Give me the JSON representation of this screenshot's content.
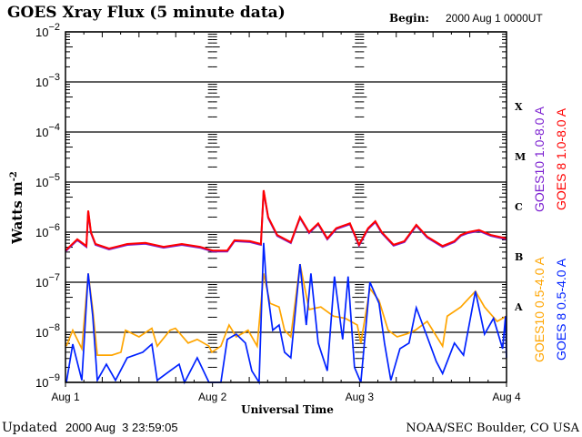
{
  "header": {
    "title": "GOES Xray Flux (5 minute data)",
    "begin_label": "Begin:",
    "begin_value": "2000 Aug 1 0000UT"
  },
  "footer": {
    "updated_label": "Updated",
    "updated_value": "2000 Aug  3 23:59:05",
    "credit": "NOAA/SEC Boulder, CO USA"
  },
  "chart_data": {
    "type": "line",
    "title": "GOES Xray Flux (5 minute data)",
    "xlabel": "Universal Time",
    "ylabel": "Watts m",
    "ylabel_exp": "-2",
    "yscale": "log",
    "ylim": [
      1e-09,
      0.01
    ],
    "xlim": [
      "2000-08-01T00:00",
      "2000-08-04T00:00"
    ],
    "x_ticks": [
      {
        "t": "2000-08-01T00:00",
        "label": "Aug 1"
      },
      {
        "t": "2000-08-02T00:00",
        "label": "Aug 2"
      },
      {
        "t": "2000-08-03T00:00",
        "label": "Aug 3"
      },
      {
        "t": "2000-08-04T00:00",
        "label": "Aug 4"
      }
    ],
    "y_ticks": [
      {
        "v": 0.01,
        "base": "10",
        "exp": "-2"
      },
      {
        "v": 0.001,
        "base": "10",
        "exp": "-3"
      },
      {
        "v": 0.0001,
        "base": "10",
        "exp": "-4"
      },
      {
        "v": 1e-05,
        "base": "10",
        "exp": "-5"
      },
      {
        "v": 1e-06,
        "base": "10",
        "exp": "-6"
      },
      {
        "v": 1e-07,
        "base": "10",
        "exp": "-7"
      },
      {
        "v": 1e-08,
        "base": "10",
        "exp": "-8"
      },
      {
        "v": 1e-09,
        "base": "10",
        "exp": "-9"
      }
    ],
    "flare_classes": [
      {
        "label": "X",
        "v": 0.00032
      },
      {
        "label": "M",
        "v": 3.2e-05
      },
      {
        "label": "C",
        "v": 3.2e-06
      },
      {
        "label": "B",
        "v": 3.2e-07
      },
      {
        "label": "A",
        "v": 3.2e-08
      }
    ],
    "grid": "horizontal lines at each decade",
    "legend_placement": "right, rotated",
    "series": [
      {
        "name": "GOES10 1.0-8.0 A",
        "color": "#7b1fd0",
        "points": [
          [
            "2000-08-01T00:00",
            4.3e-07
          ],
          [
            "2000-08-01T01:56",
            7.2e-07
          ],
          [
            "2000-08-01T03:25",
            5.3e-07
          ],
          [
            "2000-08-01T03:43",
            2.7e-06
          ],
          [
            "2000-08-01T04:09",
            1e-06
          ],
          [
            "2000-08-01T04:54",
            5.8e-07
          ],
          [
            "2000-08-01T07:07",
            4.7e-07
          ],
          [
            "2000-08-01T10:05",
            5.8e-07
          ],
          [
            "2000-08-01T13:03",
            6.1e-07
          ],
          [
            "2000-08-01T16:01",
            5.1e-07
          ],
          [
            "2000-08-01T18:59",
            5.8e-07
          ],
          [
            "2000-08-01T21:57",
            5.1e-07
          ],
          [
            "2000-08-02T00:02",
            4.3e-07
          ],
          [
            "2000-08-02T02:25",
            4.3e-07
          ],
          [
            "2000-08-02T03:36",
            6.9e-07
          ],
          [
            "2000-08-02T06:07",
            6.6e-07
          ],
          [
            "2000-08-02T07:54",
            5.8e-07
          ],
          [
            "2000-08-02T08:21",
            6.9e-06
          ],
          [
            "2000-08-02T09:05",
            2e-06
          ],
          [
            "2000-08-02T10:34",
            8.8e-07
          ],
          [
            "2000-08-02T12:47",
            6.3e-07
          ],
          [
            "2000-08-02T14:17",
            2e-06
          ],
          [
            "2000-08-02T15:46",
            1e-06
          ],
          [
            "2000-08-02T17:15",
            1.5e-06
          ],
          [
            "2000-08-02T18:44",
            7.5e-07
          ],
          [
            "2000-08-02T20:13",
            1.2e-06
          ],
          [
            "2000-08-02T22:26",
            1.5e-06
          ],
          [
            "2000-08-02T23:55",
            5.6e-07
          ],
          [
            "2000-08-03T01:24",
            1.2e-06
          ],
          [
            "2000-08-03T02:35",
            1.65e-06
          ],
          [
            "2000-08-03T03:38",
            1e-06
          ],
          [
            "2000-08-03T05:34",
            5.6e-07
          ],
          [
            "2000-08-03T07:20",
            6.6e-07
          ],
          [
            "2000-08-03T09:16",
            1.4e-06
          ],
          [
            "2000-08-03T11:03",
            8.1e-07
          ],
          [
            "2000-08-03T13:34",
            5.3e-07
          ],
          [
            "2000-08-03T15:30",
            6.6e-07
          ],
          [
            "2000-08-03T16:32",
            8.8e-07
          ],
          [
            "2000-08-03T17:44",
            1e-06
          ],
          [
            "2000-08-03T19:31",
            1.1e-06
          ],
          [
            "2000-08-03T21:26",
            8.8e-07
          ],
          [
            "2000-08-03T23:58",
            7.5e-07
          ]
        ]
      },
      {
        "name": "GOES 8 1.0-8.0 A",
        "color": "#ff0000",
        "points": [
          [
            "2000-08-01T00:00",
            4.3e-07
          ],
          [
            "2000-08-01T01:56",
            7.2e-07
          ],
          [
            "2000-08-01T03:25",
            5.3e-07
          ],
          [
            "2000-08-01T03:43",
            2.7e-06
          ],
          [
            "2000-08-01T04:09",
            1e-06
          ],
          [
            "2000-08-01T04:54",
            5.8e-07
          ],
          [
            "2000-08-01T07:07",
            4.7e-07
          ],
          [
            "2000-08-01T10:05",
            5.8e-07
          ],
          [
            "2000-08-01T13:03",
            6.1e-07
          ],
          [
            "2000-08-01T16:01",
            5.1e-07
          ],
          [
            "2000-08-01T18:59",
            5.8e-07
          ],
          [
            "2000-08-01T21:57",
            5.1e-07
          ],
          [
            "2000-08-02T00:02",
            4.3e-07
          ],
          [
            "2000-08-02T02:25",
            4.3e-07
          ],
          [
            "2000-08-02T03:36",
            6.9e-07
          ],
          [
            "2000-08-02T06:07",
            6.6e-07
          ],
          [
            "2000-08-02T07:54",
            5.8e-07
          ],
          [
            "2000-08-02T08:21",
            6.9e-06
          ],
          [
            "2000-08-02T09:05",
            2e-06
          ],
          [
            "2000-08-02T10:34",
            8.8e-07
          ],
          [
            "2000-08-02T12:47",
            6.3e-07
          ],
          [
            "2000-08-02T14:17",
            2e-06
          ],
          [
            "2000-08-02T15:46",
            1e-06
          ],
          [
            "2000-08-02T17:15",
            1.5e-06
          ],
          [
            "2000-08-02T18:44",
            7.5e-07
          ],
          [
            "2000-08-02T20:13",
            1.2e-06
          ],
          [
            "2000-08-02T22:26",
            1.5e-06
          ],
          [
            "2000-08-02T23:55",
            5.6e-07
          ],
          [
            "2000-08-03T01:24",
            1.2e-06
          ],
          [
            "2000-08-03T02:35",
            1.65e-06
          ],
          [
            "2000-08-03T03:38",
            1e-06
          ],
          [
            "2000-08-03T05:34",
            5.6e-07
          ],
          [
            "2000-08-03T07:20",
            6.6e-07
          ],
          [
            "2000-08-03T09:16",
            1.4e-06
          ],
          [
            "2000-08-03T11:03",
            8.1e-07
          ],
          [
            "2000-08-03T13:34",
            5.3e-07
          ],
          [
            "2000-08-03T15:30",
            6.6e-07
          ],
          [
            "2000-08-03T16:32",
            8.8e-07
          ],
          [
            "2000-08-03T17:44",
            1e-06
          ],
          [
            "2000-08-03T19:31",
            1.1e-06
          ],
          [
            "2000-08-03T21:26",
            8.8e-07
          ],
          [
            "2000-08-03T23:58",
            7.5e-07
          ]
        ]
      },
      {
        "name": "GOES10 0.5-4.0 A",
        "color": "#ffa500",
        "points": [
          [
            "2000-08-01T00:09",
            5.3e-09
          ],
          [
            "2000-08-01T01:11",
            1.1e-08
          ],
          [
            "2000-08-01T02:40",
            4.7e-09
          ],
          [
            "2000-08-01T03:43",
            1.5e-07
          ],
          [
            "2000-08-01T04:27",
            2.85e-08
          ],
          [
            "2000-08-01T05:12",
            3.5e-09
          ],
          [
            "2000-08-01T07:34",
            3.5e-09
          ],
          [
            "2000-08-01T09:03",
            4e-09
          ],
          [
            "2000-08-01T09:48",
            1.1e-08
          ],
          [
            "2000-08-01T12:01",
            8.1e-09
          ],
          [
            "2000-08-01T14:06",
            1.2e-08
          ],
          [
            "2000-08-01T14:59",
            5.3e-09
          ],
          [
            "2000-08-01T17:04",
            1.1e-08
          ],
          [
            "2000-08-01T17:57",
            1.2e-08
          ],
          [
            "2000-08-01T20:02",
            6.1e-09
          ],
          [
            "2000-08-01T21:31",
            7.2e-09
          ],
          [
            "2000-08-01T23:26",
            5.3e-09
          ],
          [
            "2000-08-01T23:53",
            4e-09
          ],
          [
            "2000-08-02T01:22",
            5.3e-09
          ],
          [
            "2000-08-02T02:42",
            1.4e-08
          ],
          [
            "2000-08-02T03:53",
            8.1e-09
          ],
          [
            "2000-08-02T05:49",
            1.1e-08
          ],
          [
            "2000-08-02T07:18",
            5.3e-09
          ],
          [
            "2000-08-02T08:21",
            1.5e-07
          ],
          [
            "2000-08-02T09:23",
            3.8e-08
          ],
          [
            "2000-08-02T10:52",
            3.2e-08
          ],
          [
            "2000-08-02T11:46",
            1.1e-08
          ],
          [
            "2000-08-02T12:47",
            8.1e-09
          ],
          [
            "2000-08-02T14:17",
            2.3e-07
          ],
          [
            "2000-08-02T15:46",
            2.85e-08
          ],
          [
            "2000-08-02T17:41",
            3.2e-08
          ],
          [
            "2000-08-02T19:46",
            2.1e-08
          ],
          [
            "2000-08-02T21:42",
            1.9e-08
          ],
          [
            "2000-08-02T23:38",
            1.4e-08
          ],
          [
            "2000-08-03T00:13",
            6.1e-09
          ],
          [
            "2000-08-03T01:42",
            7.5e-08
          ],
          [
            "2000-08-03T03:11",
            4.3e-08
          ],
          [
            "2000-08-03T04:40",
            1.1e-08
          ],
          [
            "2000-08-03T06:09",
            8.1e-09
          ],
          [
            "2000-08-03T07:38",
            9.2e-09
          ],
          [
            "2000-08-03T09:07",
            1.1e-08
          ],
          [
            "2000-08-03T11:03",
            1.65e-08
          ],
          [
            "2000-08-03T13:34",
            5.3e-09
          ],
          [
            "2000-08-03T14:19",
            2.1e-08
          ],
          [
            "2000-08-03T16:32",
            3.2e-08
          ],
          [
            "2000-08-03T18:55",
            6.6e-08
          ],
          [
            "2000-08-03T20:24",
            3.2e-08
          ],
          [
            "2000-08-03T22:28",
            1.65e-08
          ],
          [
            "2000-08-03T23:58",
            2.1e-08
          ]
        ]
      },
      {
        "name": "GOES 8 0.5-4.0 A",
        "color": "#0022ff",
        "points": [
          [
            "2000-08-01T00:09",
            1e-09
          ],
          [
            "2000-08-01T01:11",
            5.8e-09
          ],
          [
            "2000-08-01T02:40",
            1.1e-09
          ],
          [
            "2000-08-01T03:43",
            1.5e-07
          ],
          [
            "2000-08-01T04:27",
            2.1e-08
          ],
          [
            "2000-08-01T05:12",
            1.1e-09
          ],
          [
            "2000-08-01T06:41",
            2.3e-09
          ],
          [
            "2000-08-01T08:10",
            1.1e-09
          ],
          [
            "2000-08-01T10:05",
            3.1e-09
          ],
          [
            "2000-08-01T12:37",
            4e-09
          ],
          [
            "2000-08-01T14:06",
            5.8e-09
          ],
          [
            "2000-08-01T14:59",
            1.1e-09
          ],
          [
            "2000-08-01T17:04",
            1.7e-09
          ],
          [
            "2000-08-01T18:33",
            2.3e-09
          ],
          [
            "2000-08-01T19:26",
            1e-09
          ],
          [
            "2000-08-01T21:31",
            3.1e-09
          ],
          [
            "2000-08-01T23:26",
            1e-09
          ],
          [
            "2000-08-02T01:22",
            1e-09
          ],
          [
            "2000-08-02T02:25",
            7.2e-09
          ],
          [
            "2000-08-02T03:53",
            9.2e-09
          ],
          [
            "2000-08-02T05:23",
            6.1e-09
          ],
          [
            "2000-08-02T06:25",
            1.7e-09
          ],
          [
            "2000-08-02T07:36",
            1e-09
          ],
          [
            "2000-08-02T08:21",
            6.1e-07
          ],
          [
            "2000-08-02T08:47",
            1e-07
          ],
          [
            "2000-08-02T09:50",
            1.1e-08
          ],
          [
            "2000-08-02T10:52",
            1.4e-08
          ],
          [
            "2000-08-02T11:46",
            4e-09
          ],
          [
            "2000-08-02T12:47",
            3.1e-09
          ],
          [
            "2000-08-02T14:17",
            2.3e-07
          ],
          [
            "2000-08-02T15:19",
            1.4e-08
          ],
          [
            "2000-08-02T16:04",
            1.5e-07
          ],
          [
            "2000-08-02T17:15",
            6.1e-09
          ],
          [
            "2000-08-02T18:44",
            1.7e-09
          ],
          [
            "2000-08-02T19:55",
            1.3e-07
          ],
          [
            "2000-08-02T21:15",
            7.2e-09
          ],
          [
            "2000-08-02T22:08",
            1.3e-07
          ],
          [
            "2000-08-02T23:11",
            2e-09
          ],
          [
            "2000-08-03T00:13",
            1e-09
          ],
          [
            "2000-08-03T01:42",
            1e-07
          ],
          [
            "2000-08-03T03:11",
            3.8e-08
          ],
          [
            "2000-08-03T04:05",
            6.1e-09
          ],
          [
            "2000-08-03T05:07",
            1.1e-09
          ],
          [
            "2000-08-03T06:36",
            4.7e-09
          ],
          [
            "2000-08-03T08:05",
            6.1e-09
          ],
          [
            "2000-08-03T09:16",
            3.1e-08
          ],
          [
            "2000-08-03T11:03",
            8.1e-09
          ],
          [
            "2000-08-03T12:32",
            2.6e-09
          ],
          [
            "2000-08-03T13:34",
            1.5e-09
          ],
          [
            "2000-08-03T15:30",
            6.1e-09
          ],
          [
            "2000-08-03T16:59",
            3.5e-09
          ],
          [
            "2000-08-03T18:55",
            6.6e-08
          ],
          [
            "2000-08-03T20:24",
            9.2e-09
          ],
          [
            "2000-08-03T21:53",
            1.9e-08
          ],
          [
            "2000-08-03T23:22",
            4.7e-09
          ],
          [
            "2000-08-03T23:50",
            2.1e-08
          ],
          [
            "2000-08-03T23:59",
            3.1e-09
          ]
        ]
      }
    ]
  }
}
